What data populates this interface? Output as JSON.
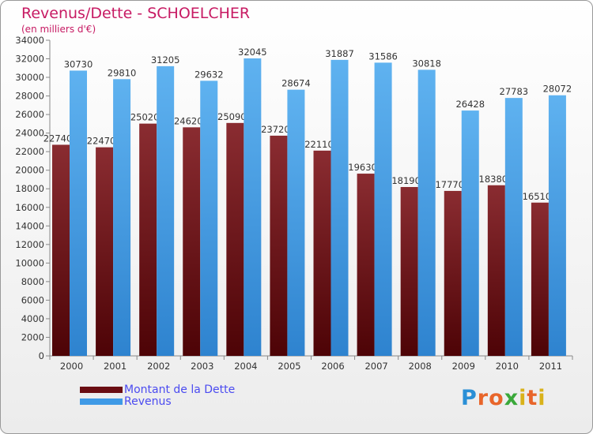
{
  "header": {
    "title": "Revenus/Dette - SCHOELCHER",
    "subtitle": "(en milliers d'€)"
  },
  "chart_data": {
    "type": "bar",
    "categories": [
      "2000",
      "2001",
      "2002",
      "2003",
      "2004",
      "2005",
      "2006",
      "2007",
      "2008",
      "2009",
      "2010",
      "2011"
    ],
    "series": [
      {
        "name": "Montant de la Dette",
        "color": "#7a1f23",
        "values": [
          22740,
          22470,
          25020,
          24620,
          25090,
          23720,
          22110,
          19630,
          18190,
          17770,
          18380,
          16510
        ],
        "labels": [
          "22740",
          "22470",
          "25020",
          "24620",
          "25090",
          "23720",
          "22110",
          "19630",
          "18190",
          "17770",
          "18380",
          "16510"
        ]
      },
      {
        "name": "Revenus",
        "color": "#4aa3e8",
        "values": [
          30730,
          29810,
          31205,
          29632,
          32045,
          28674,
          31887,
          31586,
          30818,
          26428,
          27783,
          28072
        ],
        "labels": [
          "30730",
          "29810",
          "31205",
          "29632",
          "32045",
          "28674",
          "31887",
          "31586",
          "30818",
          "26428",
          "27783",
          "28072"
        ]
      }
    ],
    "ylim": [
      0,
      34000
    ],
    "ytick_step": 2000,
    "grid": false,
    "legend_position": "bottom-left"
  },
  "logo": {
    "text": "Proxiti",
    "letters": [
      {
        "ch": "P",
        "color": "#2a8fd6"
      },
      {
        "ch": "r",
        "color": "#e8652a"
      },
      {
        "ch": "o",
        "color": "#e8652a"
      },
      {
        "ch": "x",
        "color": "#3aa83a"
      },
      {
        "ch": "i",
        "color": "#d9b21a"
      },
      {
        "ch": "t",
        "color": "#e8652a"
      },
      {
        "ch": "i",
        "color": "#d9b21a"
      }
    ]
  }
}
